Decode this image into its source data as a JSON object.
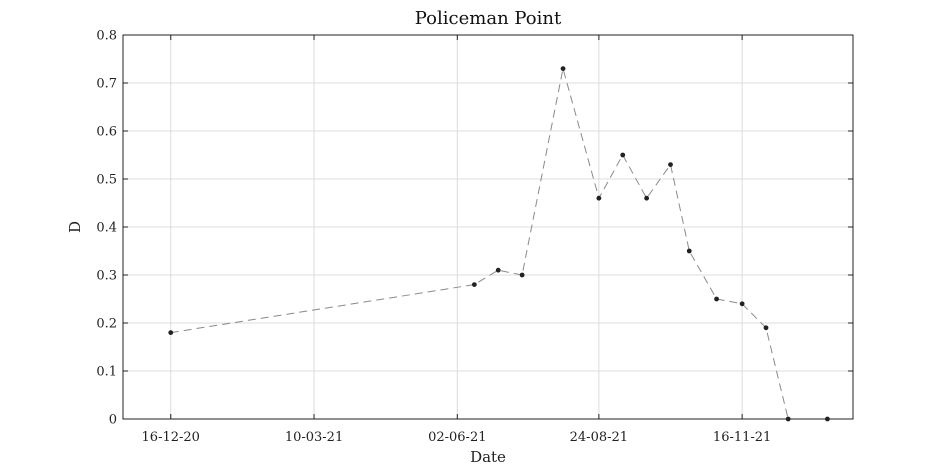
{
  "chart_data": {
    "type": "line",
    "title": "Policeman Point",
    "xlabel": "Date",
    "ylabel": "D",
    "ylim": [
      0,
      0.8
    ],
    "xlim": [
      "2020-11-18",
      "2022-01-20"
    ],
    "yticks": [
      0,
      0.1,
      0.2,
      0.3,
      0.4,
      0.5,
      0.6,
      0.7,
      0.8
    ],
    "xticks": [
      {
        "date": "2020-12-16",
        "label": "16-12-20"
      },
      {
        "date": "2021-03-10",
        "label": "10-03-21"
      },
      {
        "date": "2021-06-02",
        "label": "02-06-21"
      },
      {
        "date": "2021-08-24",
        "label": "24-08-21"
      },
      {
        "date": "2021-11-16",
        "label": "16-11-21"
      }
    ],
    "grid": true,
    "series": [
      {
        "line_style": "dashed",
        "color": "#8a8a8a",
        "marker_color": "#222222",
        "points": [
          {
            "x": "2020-12-16",
            "y": 0.18
          },
          {
            "x": "2021-06-12",
            "y": 0.28
          },
          {
            "x": "2021-06-26",
            "y": 0.31
          },
          {
            "x": "2021-07-10",
            "y": 0.3
          },
          {
            "x": "2021-08-03",
            "y": 0.73
          },
          {
            "x": "2021-08-24",
            "y": 0.46
          },
          {
            "x": "2021-09-07",
            "y": 0.55
          },
          {
            "x": "2021-09-21",
            "y": 0.46
          },
          {
            "x": "2021-10-05",
            "y": 0.53
          },
          {
            "x": "2021-10-16",
            "y": 0.35
          },
          {
            "x": "2021-11-01",
            "y": 0.25
          },
          {
            "x": "2021-11-16",
            "y": 0.24
          },
          {
            "x": "2021-11-30",
            "y": 0.19
          },
          {
            "x": "2021-12-13",
            "y": 0.0
          },
          {
            "x": "2022-01-05",
            "y": 0.0
          }
        ]
      }
    ]
  }
}
